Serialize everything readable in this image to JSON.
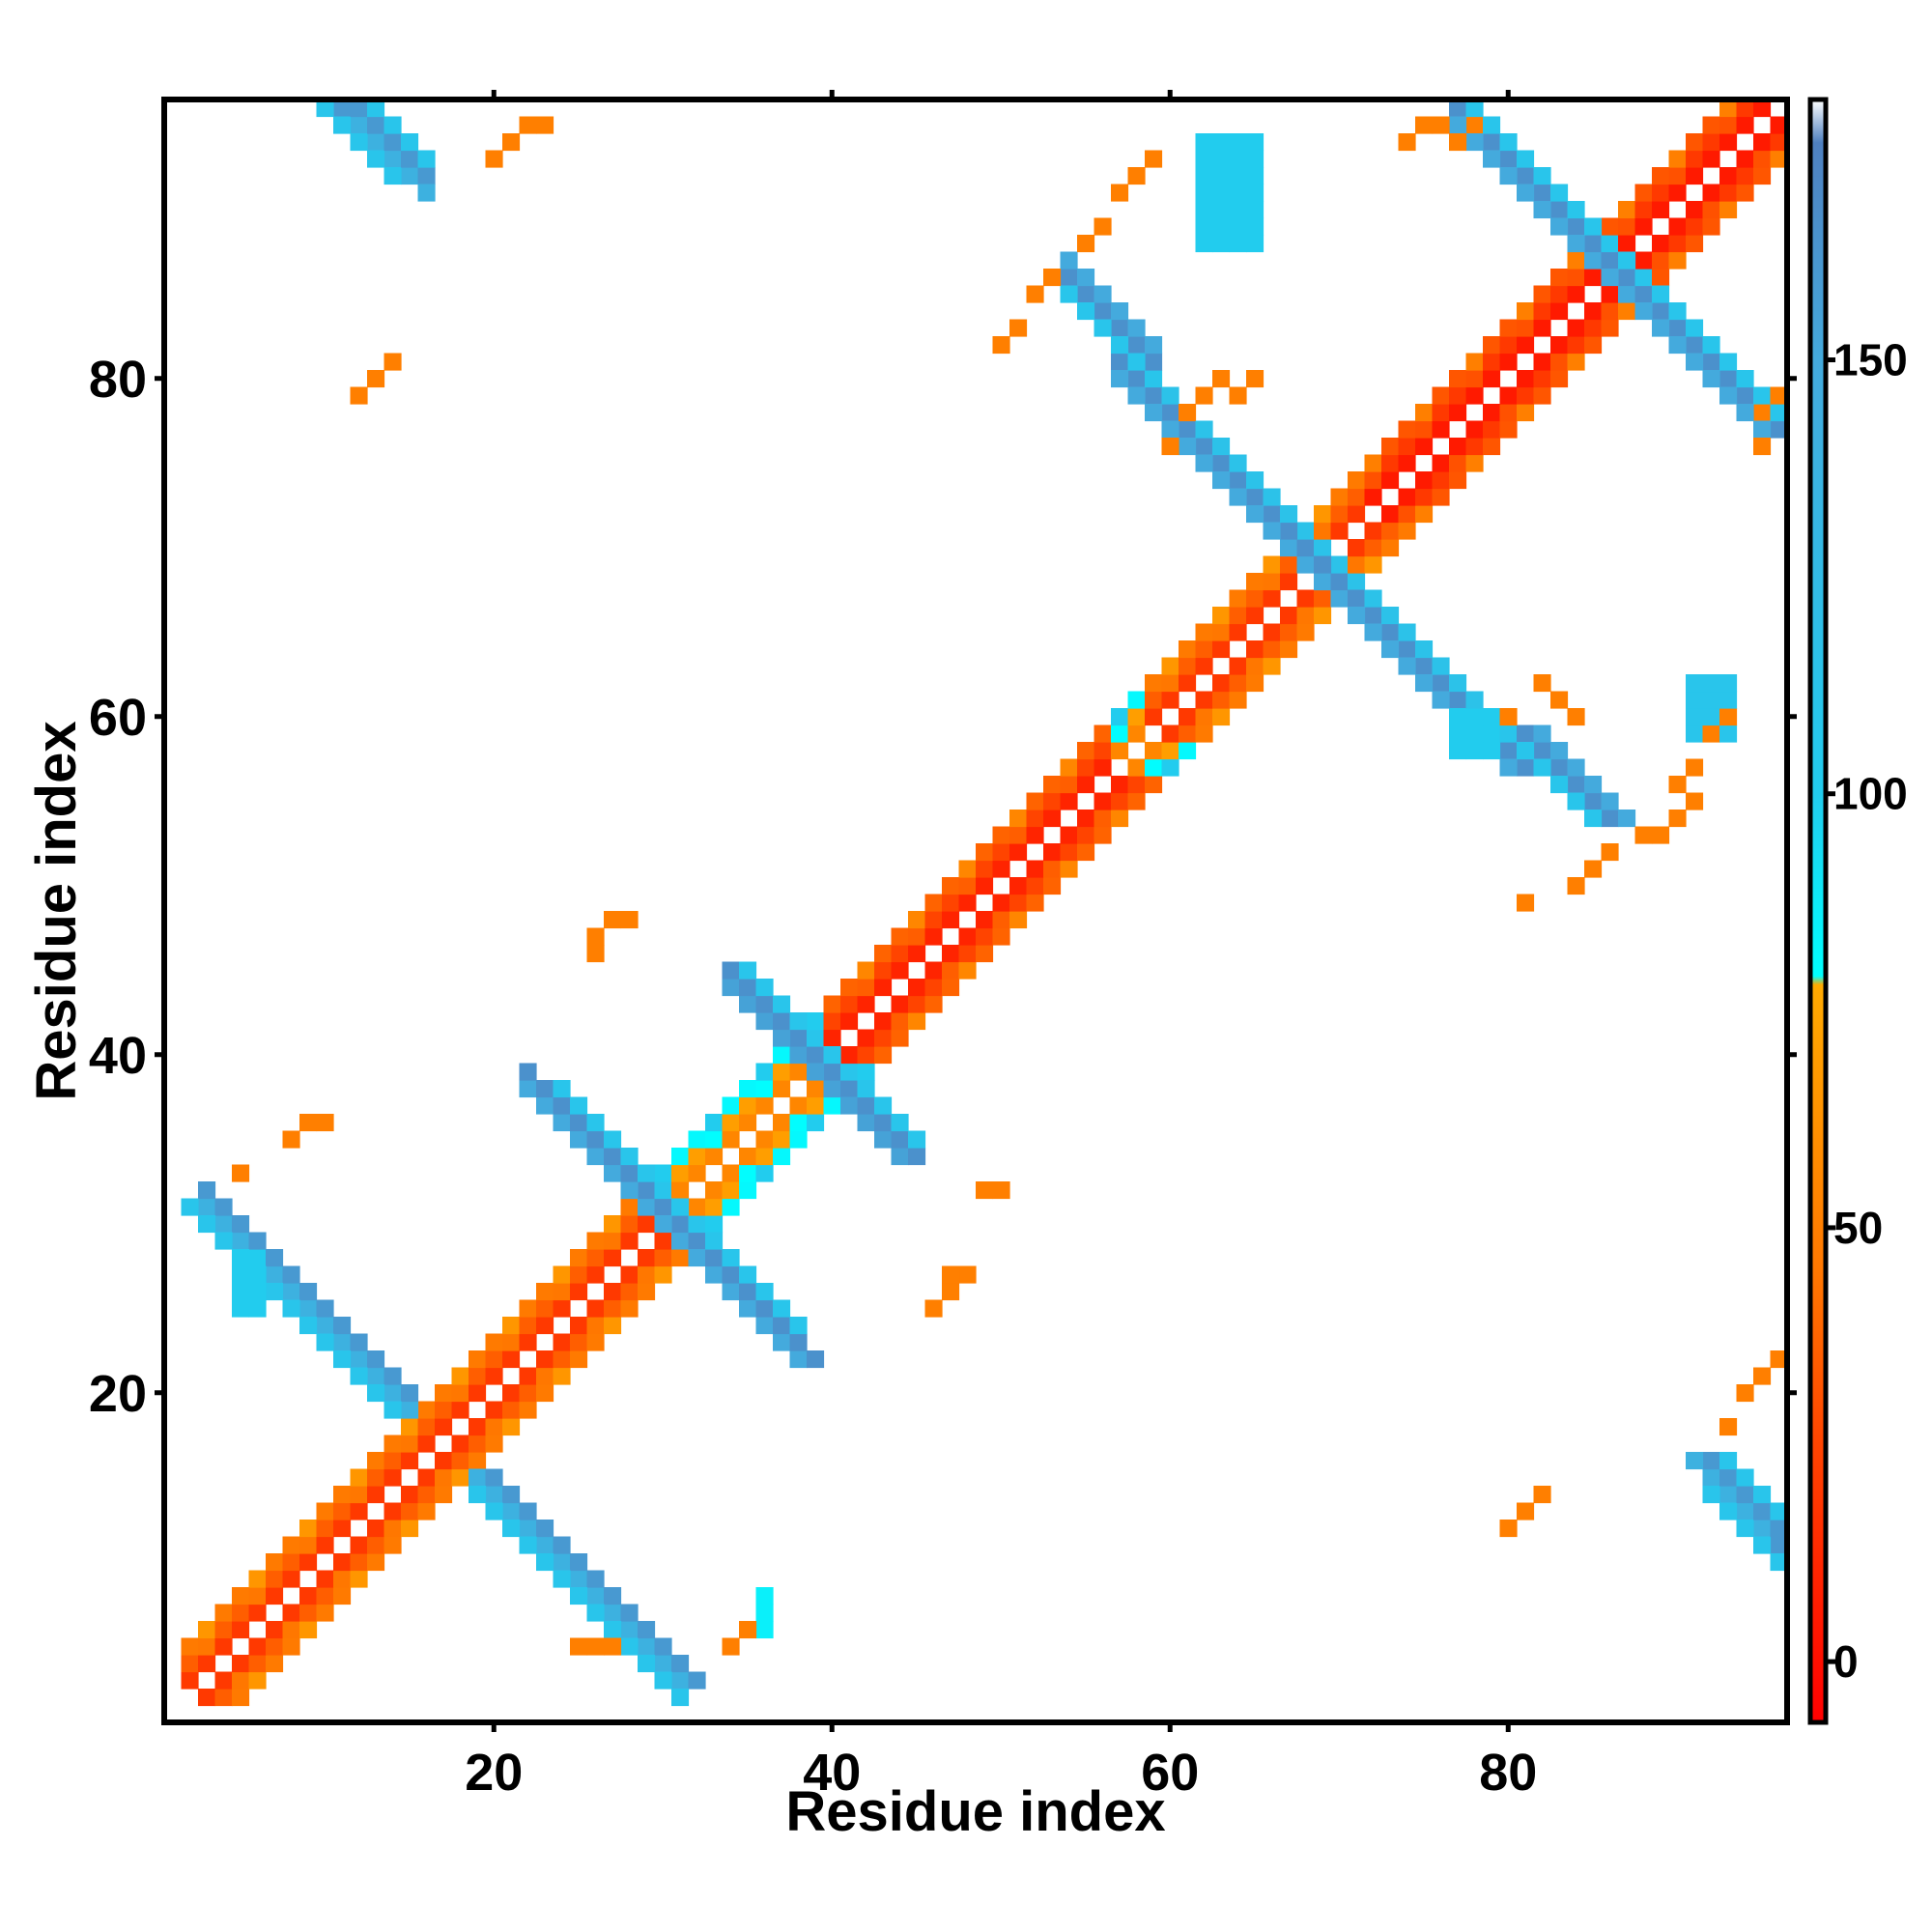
{
  "chart_data": {
    "type": "heatmap",
    "title": "",
    "xlabel": "Residue index",
    "ylabel": "Residue index",
    "xlim": [
      0.5,
      96.5
    ],
    "ylim": [
      0.5,
      96.5
    ],
    "x_ticks": [
      20,
      40,
      60,
      80
    ],
    "y_ticks": [
      20,
      40,
      60,
      80
    ],
    "colorbar": {
      "ticks": [
        0,
        50,
        100,
        150
      ],
      "range": [
        -7,
        180
      ],
      "stops": [
        {
          "value": -7,
          "color": "#ff0000"
        },
        {
          "value": 25,
          "color": "#ff4400"
        },
        {
          "value": 45,
          "color": "#ff7700"
        },
        {
          "value": 78,
          "color": "#ffaa00"
        },
        {
          "value": 79,
          "color": "#00ffff"
        },
        {
          "value": 100,
          "color": "#22ccee"
        },
        {
          "value": 150,
          "color": "#44aadd"
        },
        {
          "value": 175,
          "color": "#4f80c0"
        },
        {
          "value": 180,
          "color": "#ffffff"
        }
      ]
    },
    "grid": false,
    "legend": "colorbar-right",
    "features": [
      {
        "kind": "diagonal",
        "start": 2,
        "end": 95,
        "value": 20
      },
      {
        "kind": "diagonal",
        "start": 30,
        "end": 58,
        "value": 55
      },
      {
        "kind": "diagonal",
        "start": 40,
        "end": 56,
        "value": 10
      },
      {
        "kind": "diagonal",
        "start": 72,
        "end": 95,
        "value": 5
      },
      {
        "kind": "anti",
        "sum": 34,
        "start": 3,
        "end": 15,
        "value": 140
      },
      {
        "kind": "anti",
        "sum": 35,
        "start": 3,
        "end": 15,
        "value": 160
      },
      {
        "kind": "anti",
        "sum": 33,
        "start": 2,
        "end": 14,
        "value": 110
      },
      {
        "kind": "anti",
        "sum": 60,
        "start": 22,
        "end": 33,
        "value": 150
      },
      {
        "kind": "anti",
        "sum": 61,
        "start": 22,
        "end": 33,
        "value": 165
      },
      {
        "kind": "anti",
        "sum": 62,
        "start": 24,
        "end": 34,
        "value": 110
      },
      {
        "kind": "anti",
        "sum": 78,
        "start": 34,
        "end": 44,
        "value": 155
      },
      {
        "kind": "anti",
        "sum": 79,
        "start": 34,
        "end": 44,
        "value": 165
      },
      {
        "kind": "anti",
        "sum": 80,
        "start": 35,
        "end": 45,
        "value": 110
      },
      {
        "kind": "anti",
        "sum": 138,
        "start": 57,
        "end": 79,
        "value": 165
      },
      {
        "kind": "anti",
        "sum": 137,
        "start": 57,
        "end": 79,
        "value": 150
      },
      {
        "kind": "anti",
        "sum": 139,
        "start": 59,
        "end": 80,
        "value": 115
      },
      {
        "kind": "anti",
        "sum": 173,
        "start": 77,
        "end": 95,
        "value": 165
      },
      {
        "kind": "anti",
        "sum": 172,
        "start": 77,
        "end": 95,
        "value": 150
      },
      {
        "kind": "anti",
        "sum": 174,
        "start": 79,
        "end": 96,
        "value": 110
      },
      {
        "kind": "anti",
        "sum": 107,
        "start": 11,
        "end": 15,
        "value": 160
      },
      {
        "kind": "anti",
        "sum": 106,
        "start": 10,
        "end": 14,
        "value": 110
      },
      {
        "kind": "anti",
        "sum": 108,
        "start": 12,
        "end": 16,
        "value": 140
      },
      {
        "kind": "anti",
        "sum": 108,
        "start": 92,
        "end": 96,
        "value": 160
      },
      {
        "kind": "anti",
        "sum": 107,
        "start": 91,
        "end": 95,
        "value": 140
      },
      {
        "kind": "anti",
        "sum": 109,
        "start": 93,
        "end": 96,
        "value": 110
      },
      {
        "kind": "anti",
        "sum": 140,
        "start": 81,
        "end": 86,
        "value": 165
      },
      {
        "kind": "anti",
        "sum": 139,
        "start": 80,
        "end": 85,
        "value": 110
      },
      {
        "kind": "anti",
        "sum": 141,
        "start": 82,
        "end": 87,
        "value": 150
      },
      {
        "kind": "block",
        "x": [
          62,
          65
        ],
        "y": [
          88,
          94
        ],
        "value": 100
      },
      {
        "kind": "block",
        "x": [
          91,
          93
        ],
        "y": [
          59,
          62
        ],
        "value": 110
      },
      {
        "kind": "block",
        "x": [
          77,
          79
        ],
        "y": [
          58,
          60
        ],
        "value": 100
      },
      {
        "kind": "block",
        "x": [
          5,
          6
        ],
        "y": [
          25,
          28
        ],
        "value": 100
      },
      {
        "kind": "block",
        "x": [
          36,
          36
        ],
        "y": [
          6,
          8
        ],
        "value": 85
      },
      {
        "kind": "points",
        "value": 50,
        "cells": [
          [
            20,
            93
          ],
          [
            21,
            94
          ],
          [
            22,
            95
          ],
          [
            23,
            95
          ],
          [
            12,
            79
          ],
          [
            13,
            80
          ],
          [
            14,
            81
          ],
          [
            26,
            47
          ],
          [
            27,
            48
          ],
          [
            28,
            48
          ],
          [
            26,
            46
          ],
          [
            46,
            25
          ],
          [
            47,
            26
          ],
          [
            48,
            27
          ],
          [
            47,
            27
          ],
          [
            8,
            35
          ],
          [
            9,
            36
          ],
          [
            10,
            36
          ],
          [
            5,
            33
          ],
          [
            57,
            91
          ],
          [
            58,
            92
          ],
          [
            59,
            93
          ],
          [
            56,
            89
          ],
          [
            55,
            88
          ],
          [
            53,
            86
          ],
          [
            52,
            85
          ],
          [
            50,
            82
          ],
          [
            51,
            83
          ],
          [
            80,
            12
          ],
          [
            81,
            13
          ],
          [
            82,
            14
          ],
          [
            94,
            20
          ],
          [
            95,
            21
          ],
          [
            96,
            22
          ],
          [
            93,
            18
          ],
          [
            84,
            60
          ],
          [
            83,
            61
          ],
          [
            82,
            62
          ],
          [
            80,
            60
          ],
          [
            90,
            56
          ],
          [
            91,
            57
          ],
          [
            92,
            59
          ],
          [
            93,
            60
          ],
          [
            91,
            55
          ],
          [
            90,
            54
          ],
          [
            88,
            53
          ],
          [
            89,
            53
          ],
          [
            85,
            51
          ],
          [
            84,
            50
          ],
          [
            86,
            52
          ],
          [
            81,
            49
          ],
          [
            95,
            76
          ],
          [
            95,
            78
          ],
          [
            96,
            79
          ],
          [
            74,
            94
          ],
          [
            75,
            95
          ],
          [
            76,
            95
          ],
          [
            77,
            94
          ],
          [
            78,
            95
          ],
          [
            25,
            5
          ],
          [
            26,
            5
          ],
          [
            27,
            5
          ],
          [
            34,
            5
          ],
          [
            35,
            6
          ],
          [
            49,
            32
          ],
          [
            50,
            32
          ],
          [
            60,
            76
          ],
          [
            61,
            78
          ],
          [
            62,
            79
          ],
          [
            63,
            80
          ],
          [
            64,
            79
          ],
          [
            65,
            80
          ]
        ]
      }
    ]
  },
  "colorbar_tick_labels": [
    "0",
    "50",
    "100",
    "150"
  ],
  "x_tick_labels": [
    "20",
    "40",
    "60",
    "80"
  ],
  "y_tick_labels": [
    "20",
    "40",
    "60",
    "80"
  ]
}
